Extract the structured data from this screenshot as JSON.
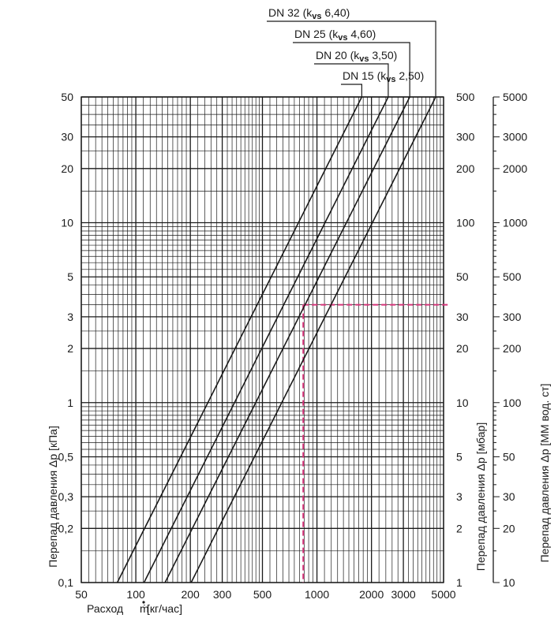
{
  "chart_data": {
    "type": "line",
    "xlabel": "Расход",
    "xlabel_symbol": "ṁ",
    "xlabel_unit": "[кг/час]",
    "ylabel_left": "Перепад давления Δp [кПа]",
    "ylabel_mid": "Перепад давления Δp [мбар]",
    "ylabel_right": "Перепад давления Δp [ММ вод. ст]",
    "xscale": "log",
    "yscale": "log",
    "xlim": [
      50,
      5000
    ],
    "ylim": [
      0.1,
      50
    ],
    "grid": true,
    "x_ticks": [
      {
        "value": 50,
        "label": "50"
      },
      {
        "value": 100,
        "label": "100"
      },
      {
        "value": 200,
        "label": "200"
      },
      {
        "value": 300,
        "label": "300"
      },
      {
        "value": 500,
        "label": "500"
      },
      {
        "value": 1000,
        "label": "1000"
      },
      {
        "value": 2000,
        "label": "2000"
      },
      {
        "value": 3000,
        "label": "3000"
      },
      {
        "value": 5000,
        "label": "5000"
      }
    ],
    "y_ticks_left": [
      {
        "value": 0.1,
        "label": "0,1"
      },
      {
        "value": 0.2,
        "label": "0,2"
      },
      {
        "value": 0.3,
        "label": "0,3"
      },
      {
        "value": 0.5,
        "label": "0,5"
      },
      {
        "value": 1,
        "label": "1"
      },
      {
        "value": 2,
        "label": "2"
      },
      {
        "value": 3,
        "label": "3"
      },
      {
        "value": 5,
        "label": "5"
      },
      {
        "value": 10,
        "label": "10"
      },
      {
        "value": 20,
        "label": "20"
      },
      {
        "value": 30,
        "label": "30"
      },
      {
        "value": 50,
        "label": "50"
      }
    ],
    "y_ticks_mid": [
      {
        "value": 0.1,
        "label": "1"
      },
      {
        "value": 0.2,
        "label": "2"
      },
      {
        "value": 0.3,
        "label": "3"
      },
      {
        "value": 0.5,
        "label": "5"
      },
      {
        "value": 1,
        "label": "10"
      },
      {
        "value": 2,
        "label": "20"
      },
      {
        "value": 3,
        "label": "30"
      },
      {
        "value": 5,
        "label": "50"
      },
      {
        "value": 10,
        "label": "100"
      },
      {
        "value": 20,
        "label": "200"
      },
      {
        "value": 30,
        "label": "300"
      },
      {
        "value": 50,
        "label": "500"
      }
    ],
    "y_ticks_right": [
      {
        "value": 0.1,
        "label": "10"
      },
      {
        "value": 0.2,
        "label": "20"
      },
      {
        "value": 0.3,
        "label": "30"
      },
      {
        "value": 0.5,
        "label": "50"
      },
      {
        "value": 1,
        "label": "100"
      },
      {
        "value": 2,
        "label": "200"
      },
      {
        "value": 3,
        "label": "300"
      },
      {
        "value": 5,
        "label": "500"
      },
      {
        "value": 10,
        "label": "1000"
      },
      {
        "value": 20,
        "label": "2000"
      },
      {
        "value": 30,
        "label": "3000"
      },
      {
        "value": 50,
        "label": "5000"
      }
    ],
    "series": [
      {
        "name": "DN 15",
        "kvs_label": "k",
        "kvs_sub": "vs",
        "kvs_value": "2,50",
        "x": [
          79,
          1768
        ],
        "y": [
          0.1,
          50
        ]
      },
      {
        "name": "DN 20",
        "kvs_label": "k",
        "kvs_sub": "vs",
        "kvs_value": "3,50",
        "x": [
          111,
          2475
        ],
        "y": [
          0.1,
          50
        ]
      },
      {
        "name": "DN 25",
        "kvs_label": "k",
        "kvs_sub": "vs",
        "kvs_value": "4,60",
        "x": [
          145,
          3253
        ],
        "y": [
          0.1,
          50
        ]
      },
      {
        "name": "DN 32",
        "kvs_label": "k",
        "kvs_sub": "vs",
        "kvs_value": "6,40",
        "x": [
          202,
          4525
        ],
        "y": [
          0.1,
          50
        ]
      }
    ],
    "example": {
      "x": 840,
      "y": 3.5
    },
    "colors": {
      "line": "#1a1a1a",
      "grid": "#1a1a1a",
      "example": "#d6337a"
    }
  }
}
